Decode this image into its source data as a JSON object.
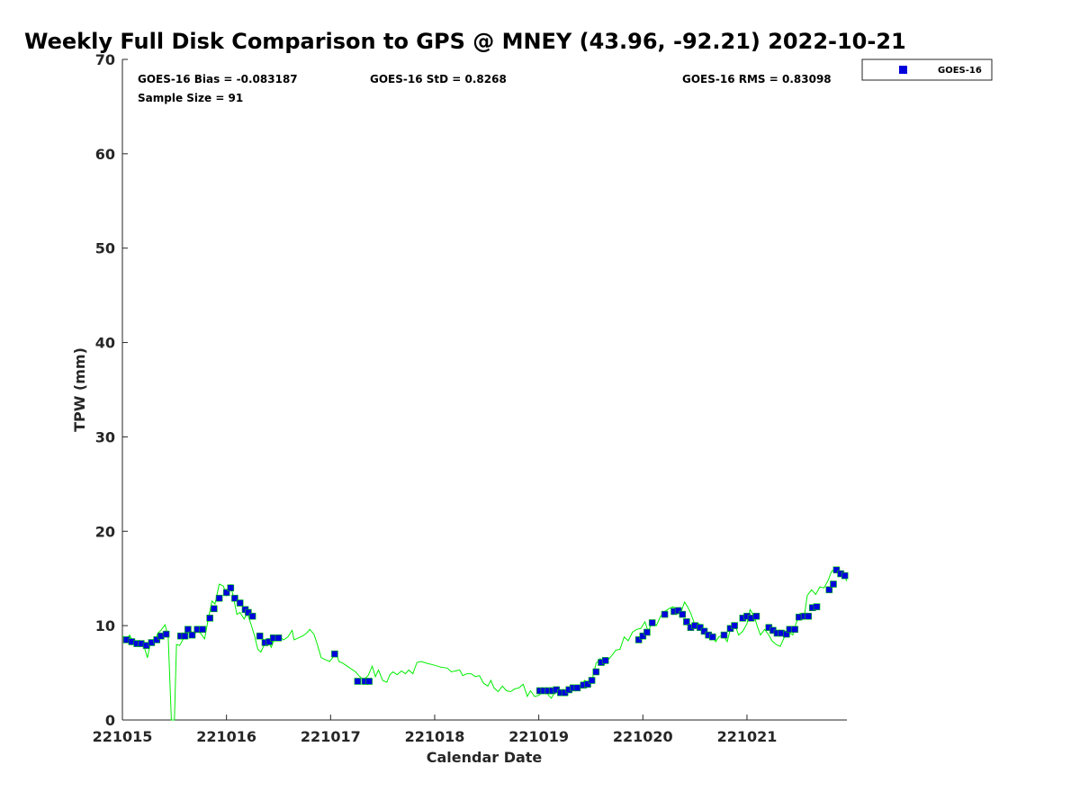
{
  "chart_data": {
    "type": "scatter",
    "title": "Weekly Full Disk Comparison to GPS @ MNEY (43.96, -92.21) 2022-10-21",
    "xlabel": "Calendar Date",
    "ylabel": "TPW (mm)",
    "xlim": [
      221015,
      221021.96
    ],
    "ylim": [
      0,
      70
    ],
    "x_ticks": [
      221015,
      221016,
      221017,
      221018,
      221019,
      221020,
      221021
    ],
    "x_tick_labels": [
      "221015",
      "221016",
      "221017",
      "221018",
      "221019",
      "221020",
      "221021"
    ],
    "y_ticks": [
      0,
      10,
      20,
      30,
      40,
      50,
      60,
      70
    ],
    "y_tick_labels": [
      "0",
      "10",
      "20",
      "30",
      "40",
      "50",
      "60",
      "70"
    ],
    "grid": false,
    "legend": {
      "placement": "top-right outside",
      "entries": [
        "GOES-16"
      ]
    },
    "stats": {
      "bias": "GOES-16 Bias = -0.083187",
      "std": "GOES-16 StD = 0.8268",
      "rms": "GOES-16 RMS = 0.83098",
      "sample": "Sample Size = 91"
    },
    "series": [
      {
        "name": "GOES-16",
        "kind": "scatter",
        "color": "#0000dd",
        "edge_color": "#00cc00",
        "points": [
          [
            221015.04,
            8.5
          ],
          [
            221015.09,
            8.3
          ],
          [
            221015.14,
            8.1
          ],
          [
            221015.18,
            8.1
          ],
          [
            221015.23,
            7.9
          ],
          [
            221015.28,
            8.2
          ],
          [
            221015.33,
            8.5
          ],
          [
            221015.37,
            8.9
          ],
          [
            221015.42,
            9.1
          ],
          [
            221015.56,
            8.9
          ],
          [
            221015.6,
            8.9
          ],
          [
            221015.63,
            9.6
          ],
          [
            221015.67,
            9.0
          ],
          [
            221015.72,
            9.6
          ],
          [
            221015.77,
            9.6
          ],
          [
            221015.84,
            10.8
          ],
          [
            221015.88,
            11.8
          ],
          [
            221015.93,
            12.9
          ],
          [
            221016.0,
            13.5
          ],
          [
            221016.04,
            14.0
          ],
          [
            221016.08,
            12.9
          ],
          [
            221016.13,
            12.4
          ],
          [
            221016.18,
            11.7
          ],
          [
            221016.21,
            11.4
          ],
          [
            221016.25,
            11.0
          ],
          [
            221016.32,
            8.9
          ],
          [
            221016.37,
            8.2
          ],
          [
            221016.41,
            8.3
          ],
          [
            221016.45,
            8.7
          ],
          [
            221016.5,
            8.7
          ],
          [
            221017.04,
            7.0
          ],
          [
            221017.26,
            4.1
          ],
          [
            221017.33,
            4.1
          ],
          [
            221017.37,
            4.1
          ],
          [
            221019.01,
            3.1
          ],
          [
            221019.05,
            3.1
          ],
          [
            221019.09,
            3.1
          ],
          [
            221019.13,
            3.1
          ],
          [
            221019.17,
            3.2
          ],
          [
            221019.21,
            2.9
          ],
          [
            221019.25,
            2.9
          ],
          [
            221019.29,
            3.2
          ],
          [
            221019.33,
            3.4
          ],
          [
            221019.37,
            3.4
          ],
          [
            221019.43,
            3.7
          ],
          [
            221019.47,
            3.8
          ],
          [
            221019.51,
            4.2
          ],
          [
            221019.55,
            5.1
          ],
          [
            221019.6,
            6.1
          ],
          [
            221019.64,
            6.3
          ],
          [
            221019.96,
            8.5
          ],
          [
            221020.0,
            8.9
          ],
          [
            221020.04,
            9.3
          ],
          [
            221020.09,
            10.3
          ],
          [
            221020.21,
            11.2
          ],
          [
            221020.3,
            11.5
          ],
          [
            221020.34,
            11.6
          ],
          [
            221020.38,
            11.2
          ],
          [
            221020.42,
            10.4
          ],
          [
            221020.46,
            9.8
          ],
          [
            221020.5,
            10.0
          ],
          [
            221020.55,
            9.8
          ],
          [
            221020.59,
            9.4
          ],
          [
            221020.63,
            9.0
          ],
          [
            221020.67,
            8.8
          ],
          [
            221020.78,
            9.0
          ],
          [
            221020.84,
            9.7
          ],
          [
            221020.88,
            10.0
          ],
          [
            221020.96,
            10.8
          ],
          [
            221021.0,
            11.0
          ],
          [
            221021.04,
            10.8
          ],
          [
            221021.09,
            11.0
          ],
          [
            221021.21,
            9.8
          ],
          [
            221021.25,
            9.5
          ],
          [
            221021.29,
            9.2
          ],
          [
            221021.33,
            9.2
          ],
          [
            221021.38,
            9.1
          ],
          [
            221021.41,
            9.6
          ],
          [
            221021.46,
            9.6
          ],
          [
            221021.5,
            10.9
          ],
          [
            221021.55,
            11.0
          ],
          [
            221021.59,
            11.0
          ],
          [
            221021.63,
            11.9
          ],
          [
            221021.67,
            12.0
          ],
          [
            221021.79,
            13.8
          ],
          [
            221021.83,
            14.4
          ],
          [
            221021.86,
            15.9
          ],
          [
            221021.9,
            15.5
          ],
          [
            221021.94,
            15.3
          ]
        ]
      },
      {
        "name": "",
        "kind": "line",
        "color": "#00ee00",
        "points": [
          [
            221015.0,
            8.9
          ],
          [
            221015.04,
            8.6
          ],
          [
            221015.07,
            9.0
          ],
          [
            221015.1,
            8.2
          ],
          [
            221015.13,
            8.0
          ],
          [
            221015.17,
            8.3
          ],
          [
            221015.2,
            8.1
          ],
          [
            221015.24,
            6.6
          ],
          [
            221015.27,
            8.2
          ],
          [
            221015.3,
            8.0
          ],
          [
            221015.34,
            9.2
          ],
          [
            221015.37,
            9.5
          ],
          [
            221015.41,
            10.1
          ],
          [
            221015.44,
            8.8
          ],
          [
            221015.47,
            0.0
          ],
          [
            221015.5,
            0.0
          ],
          [
            221015.52,
            8.0
          ],
          [
            221015.55,
            7.9
          ],
          [
            221015.58,
            8.5
          ],
          [
            221015.61,
            8.9
          ],
          [
            221015.65,
            9.6
          ],
          [
            221015.68,
            9.0
          ],
          [
            221015.72,
            9.4
          ],
          [
            221015.75,
            9.2
          ],
          [
            221015.79,
            8.6
          ],
          [
            221015.82,
            10.4
          ],
          [
            221015.86,
            12.6
          ],
          [
            221015.89,
            12.3
          ],
          [
            221015.93,
            14.4
          ],
          [
            221015.97,
            14.2
          ],
          [
            221016.0,
            13.2
          ],
          [
            221016.04,
            14.3
          ],
          [
            221016.07,
            12.8
          ],
          [
            221016.1,
            11.2
          ],
          [
            221016.13,
            11.4
          ],
          [
            221016.17,
            10.7
          ],
          [
            221016.2,
            11.3
          ],
          [
            221016.24,
            10.0
          ],
          [
            221016.27,
            8.9
          ],
          [
            221016.3,
            7.5
          ],
          [
            221016.33,
            7.2
          ],
          [
            221016.36,
            7.9
          ],
          [
            221016.4,
            8.3
          ],
          [
            221016.43,
            7.7
          ],
          [
            221016.47,
            8.9
          ],
          [
            221016.51,
            8.8
          ],
          [
            221016.55,
            8.5
          ],
          [
            221016.59,
            8.8
          ],
          [
            221016.63,
            9.5
          ],
          [
            221016.65,
            8.5
          ],
          [
            221016.69,
            8.7
          ],
          [
            221016.73,
            8.9
          ],
          [
            221016.77,
            9.2
          ],
          [
            221016.8,
            9.6
          ],
          [
            221016.84,
            9.1
          ],
          [
            221016.87,
            8.1
          ],
          [
            221016.91,
            6.6
          ],
          [
            221016.95,
            6.4
          ],
          [
            221016.99,
            6.2
          ],
          [
            221017.02,
            6.6
          ],
          [
            221017.05,
            7.2
          ],
          [
            221017.08,
            6.2
          ],
          [
            221017.12,
            6.0
          ],
          [
            221017.16,
            5.7
          ],
          [
            221017.2,
            5.4
          ],
          [
            221017.24,
            5.1
          ],
          [
            221017.28,
            4.6
          ],
          [
            221017.32,
            4.3
          ],
          [
            221017.36,
            4.7
          ],
          [
            221017.4,
            5.7
          ],
          [
            221017.43,
            4.6
          ],
          [
            221017.46,
            5.3
          ],
          [
            221017.5,
            4.2
          ],
          [
            221017.54,
            4.0
          ],
          [
            221017.57,
            4.8
          ],
          [
            221017.6,
            5.1
          ],
          [
            221017.64,
            4.8
          ],
          [
            221017.68,
            5.2
          ],
          [
            221017.72,
            4.9
          ],
          [
            221017.75,
            5.3
          ],
          [
            221017.79,
            4.9
          ],
          [
            221017.83,
            6.1
          ],
          [
            221017.87,
            6.2
          ],
          [
            221017.93,
            6.0
          ],
          [
            221018.0,
            5.8
          ],
          [
            221018.06,
            5.6
          ],
          [
            221018.12,
            5.5
          ],
          [
            221018.16,
            5.1
          ],
          [
            221018.2,
            5.2
          ],
          [
            221018.24,
            5.3
          ],
          [
            221018.27,
            4.7
          ],
          [
            221018.31,
            4.9
          ],
          [
            221018.35,
            4.9
          ],
          [
            221018.39,
            4.6
          ],
          [
            221018.43,
            4.7
          ],
          [
            221018.47,
            3.9
          ],
          [
            221018.51,
            3.6
          ],
          [
            221018.54,
            4.2
          ],
          [
            221018.57,
            3.4
          ],
          [
            221018.61,
            3.0
          ],
          [
            221018.65,
            3.6
          ],
          [
            221018.69,
            3.1
          ],
          [
            221018.73,
            3.0
          ],
          [
            221018.77,
            3.3
          ],
          [
            221018.81,
            3.4
          ],
          [
            221018.85,
            3.8
          ],
          [
            221018.89,
            2.5
          ],
          [
            221018.92,
            3.1
          ],
          [
            221018.96,
            2.5
          ],
          [
            221019.0,
            2.6
          ],
          [
            221019.04,
            3.0
          ],
          [
            221019.08,
            2.8
          ],
          [
            221019.12,
            2.3
          ],
          [
            221019.16,
            3.1
          ],
          [
            221019.2,
            2.8
          ],
          [
            221019.24,
            2.8
          ],
          [
            221019.28,
            3.5
          ],
          [
            221019.32,
            3.2
          ],
          [
            221019.36,
            3.6
          ],
          [
            221019.4,
            3.5
          ],
          [
            221019.44,
            4.2
          ],
          [
            221019.48,
            3.9
          ],
          [
            221019.52,
            4.6
          ],
          [
            221019.55,
            6.0
          ],
          [
            221019.59,
            6.5
          ],
          [
            221019.62,
            5.8
          ],
          [
            221019.66,
            6.3
          ],
          [
            221019.7,
            6.8
          ],
          [
            221019.74,
            7.4
          ],
          [
            221019.78,
            7.5
          ],
          [
            221019.82,
            8.8
          ],
          [
            221019.86,
            8.4
          ],
          [
            221019.9,
            9.3
          ],
          [
            221019.94,
            9.6
          ],
          [
            221019.98,
            9.7
          ],
          [
            221020.02,
            10.4
          ],
          [
            221020.05,
            9.4
          ],
          [
            221020.09,
            10.3
          ],
          [
            221020.13,
            10.0
          ],
          [
            221020.17,
            11.0
          ],
          [
            221020.21,
            11.5
          ],
          [
            221020.25,
            11.8
          ],
          [
            221020.29,
            12.0
          ],
          [
            221020.33,
            11.7
          ],
          [
            221020.36,
            11.2
          ],
          [
            221020.4,
            12.5
          ],
          [
            221020.43,
            12.0
          ],
          [
            221020.46,
            11.3
          ],
          [
            221020.5,
            10.1
          ],
          [
            221020.54,
            10.2
          ],
          [
            221020.58,
            9.5
          ],
          [
            221020.62,
            9.2
          ],
          [
            221020.66,
            8.9
          ],
          [
            221020.7,
            8.3
          ],
          [
            221020.73,
            8.8
          ],
          [
            221020.77,
            9.0
          ],
          [
            221020.81,
            8.3
          ],
          [
            221020.84,
            9.6
          ],
          [
            221020.88,
            10.2
          ],
          [
            221020.92,
            9.0
          ],
          [
            221020.96,
            9.4
          ],
          [
            221021.0,
            10.2
          ],
          [
            221021.03,
            11.7
          ],
          [
            221021.07,
            11.0
          ],
          [
            221021.1,
            9.9
          ],
          [
            221021.13,
            9.0
          ],
          [
            221021.17,
            9.6
          ],
          [
            221021.21,
            9.0
          ],
          [
            221021.24,
            8.4
          ],
          [
            221021.28,
            8.0
          ],
          [
            221021.32,
            7.8
          ],
          [
            221021.36,
            8.8
          ],
          [
            221021.4,
            9.3
          ],
          [
            221021.44,
            9.0
          ],
          [
            221021.47,
            10.2
          ],
          [
            221021.51,
            11.3
          ],
          [
            221021.55,
            11.0
          ],
          [
            221021.58,
            13.2
          ],
          [
            221021.62,
            13.8
          ],
          [
            221021.66,
            13.3
          ],
          [
            221021.7,
            14.1
          ],
          [
            221021.74,
            14.0
          ],
          [
            221021.78,
            14.8
          ],
          [
            221021.81,
            15.7
          ],
          [
            221021.85,
            16.1
          ],
          [
            221021.89,
            15.5
          ],
          [
            221021.93,
            15.4
          ],
          [
            221021.96,
            14.7
          ]
        ]
      }
    ]
  }
}
